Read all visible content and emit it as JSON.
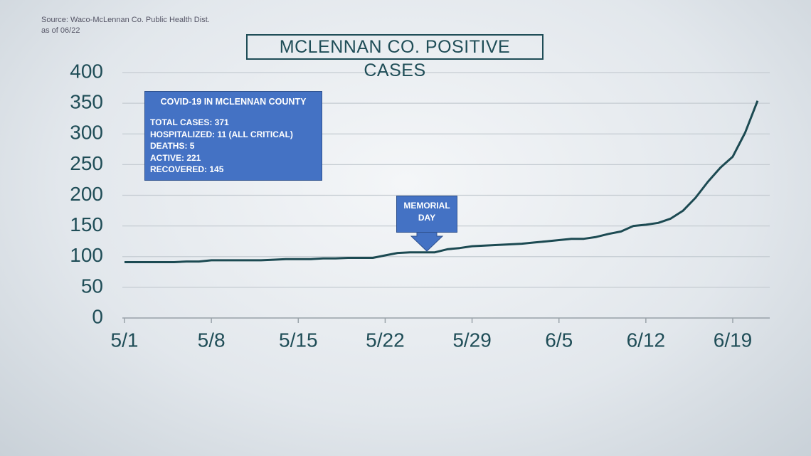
{
  "chart_data": {
    "type": "line",
    "title": "MCLENNAN CO. POSITIVE CASES",
    "source": "Source: Waco-McLennan Co. Public Health Dist.",
    "as_of": "as of 06/22",
    "categories": [
      "5/1",
      null,
      null,
      null,
      null,
      null,
      null,
      "5/8",
      null,
      null,
      null,
      null,
      null,
      null,
      "5/15",
      null,
      null,
      null,
      null,
      null,
      null,
      "5/22",
      null,
      null,
      null,
      null,
      null,
      null,
      "5/29",
      null,
      null,
      null,
      null,
      null,
      null,
      "6/5",
      null,
      null,
      null,
      null,
      null,
      null,
      "6/12",
      null,
      null,
      null,
      null,
      null,
      null,
      "6/19",
      null,
      null
    ],
    "series": [
      {
        "name": "Positive cases",
        "color": "#1c4a52",
        "values": [
          91,
          91,
          91,
          91,
          91,
          92,
          92,
          94,
          94,
          94,
          94,
          94,
          95,
          96,
          96,
          96,
          97,
          97,
          98,
          98,
          98,
          102,
          106,
          107,
          107,
          107,
          112,
          114,
          117,
          118,
          119,
          120,
          121,
          123,
          125,
          127,
          129,
          129,
          132,
          137,
          141,
          150,
          152,
          155,
          162,
          175,
          196,
          222,
          245,
          263,
          302,
          354
        ]
      }
    ],
    "ylim": [
      0,
      400
    ],
    "yticks": [
      0,
      50,
      100,
      150,
      200,
      250,
      300,
      350,
      400
    ],
    "grid": true,
    "infobox": {
      "title": "COVID-19 IN MCLENNAN COUNTY",
      "lines": [
        "TOTAL CASES: 371",
        "HOSPITALIZED: 11 (ALL CRITICAL)",
        "DEATHS: 5",
        "ACTIVE: 221",
        "RECOVERED: 145"
      ]
    },
    "annotation": {
      "text": "MEMORIAL DAY"
    }
  }
}
